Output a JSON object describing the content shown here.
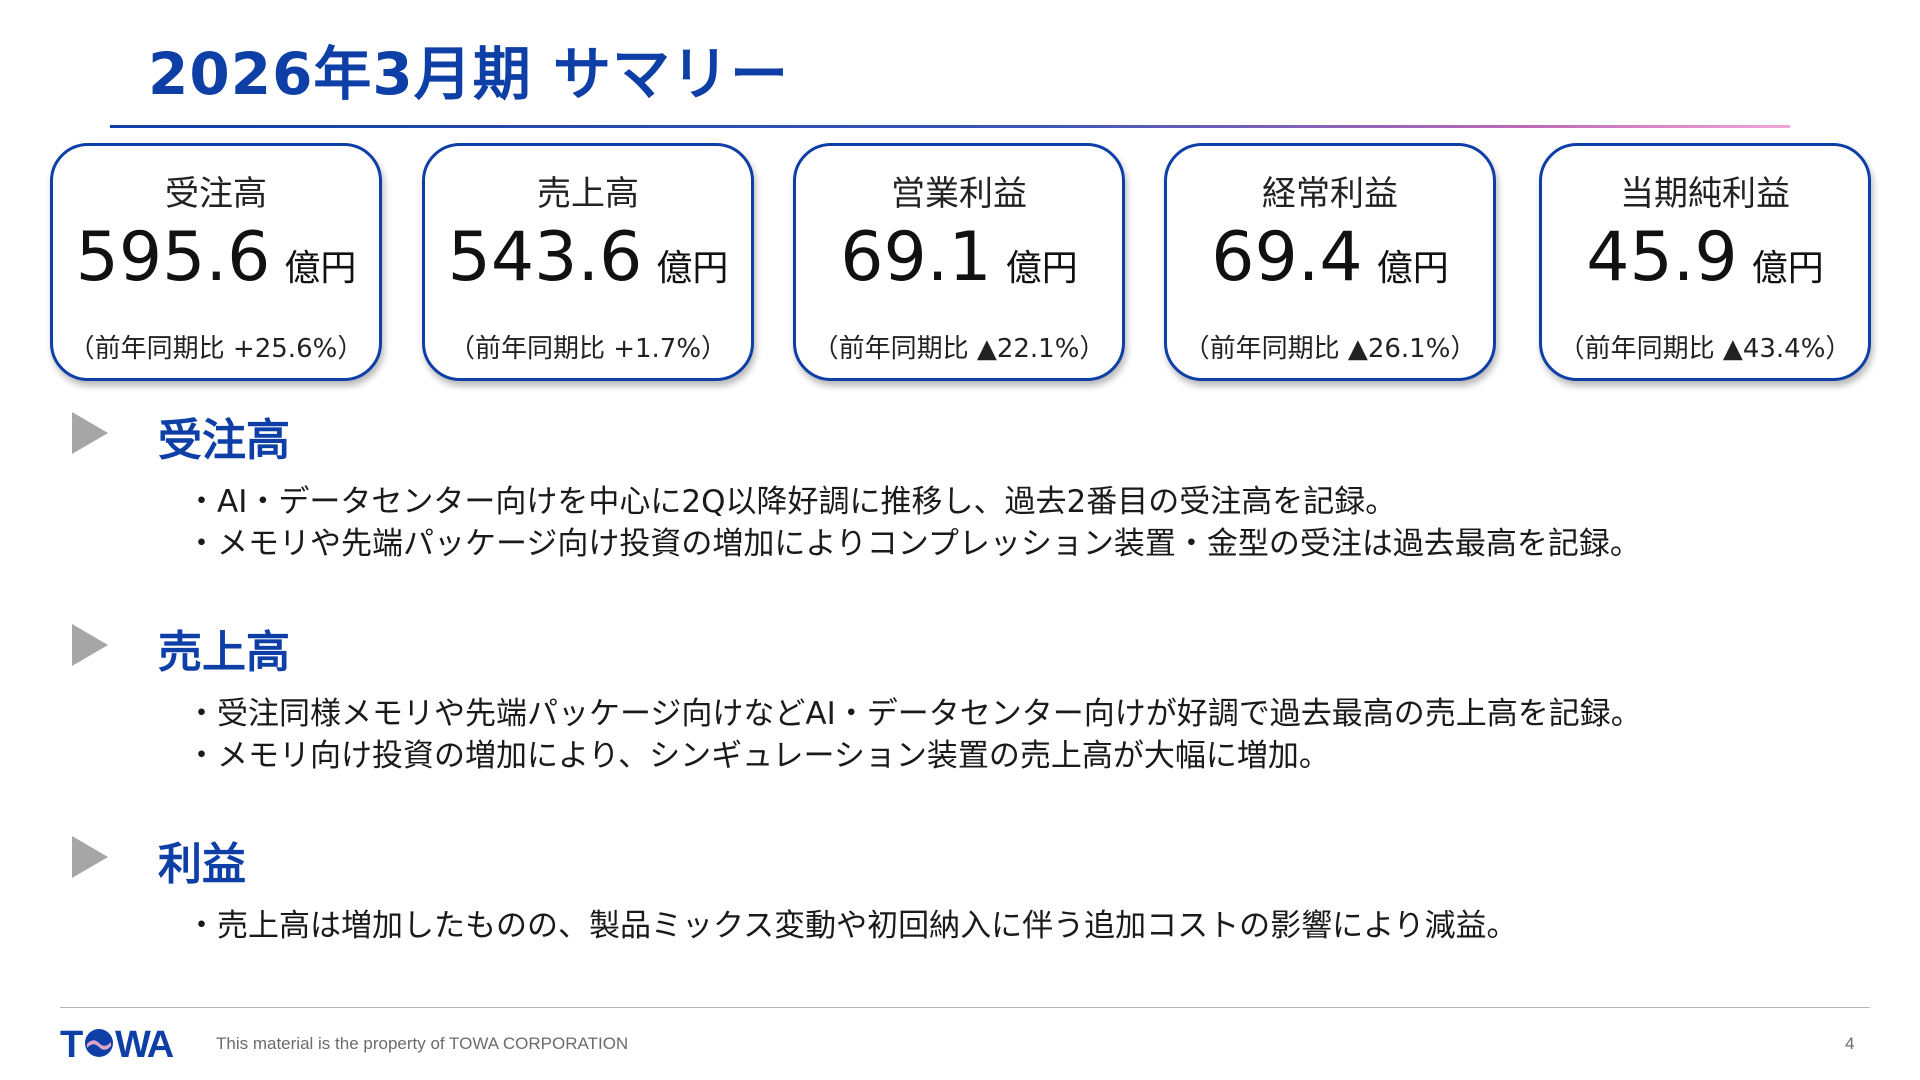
{
  "title": "2026年3月期 サマリー",
  "kpis": [
    {
      "label": "受注高",
      "value": "595.6",
      "unit": "億円",
      "yoy": "（前年同期比 +25.6%）"
    },
    {
      "label": "売上高",
      "value": "543.6",
      "unit": "億円",
      "yoy": "（前年同期比 +1.7%）"
    },
    {
      "label": "営業利益",
      "value": "69.1",
      "unit": "億円",
      "yoy": "（前年同期比 ▲22.1%）"
    },
    {
      "label": "経常利益",
      "value": "69.4",
      "unit": "億円",
      "yoy": "（前年同期比 ▲26.1%）"
    },
    {
      "label": "当期純利益",
      "value": "45.9",
      "unit": "億円",
      "yoy": "（前年同期比 ▲43.4%）"
    }
  ],
  "sections": [
    {
      "heading": "受注高",
      "bullets": [
        "・AI・データセンター向けを中心に2Q以降好調に推移し、過去2番目の受注高を記録。",
        "・メモリや先端パッケージ向け投資の増加によりコンプレッション装置・金型の受注は過去最高を記録。"
      ]
    },
    {
      "heading": "売上高",
      "bullets": [
        "・受注同様メモリや先端パッケージ向けなどAI・データセンター向けが好調で過去最高の売上高を記録。",
        "・メモリ向け投資の増加により、シンギュレーション装置の売上高が大幅に増加。"
      ]
    },
    {
      "heading": "利益",
      "bullets": [
        "・売上高は増加したものの、製品ミックス変動や初回納入に伴う追加コストの影響により減益。"
      ]
    }
  ],
  "footer": {
    "logo_text": "TOWA",
    "property_text": "This material is the property of TOWA CORPORATION",
    "page_number": "4"
  },
  "colors": {
    "brand_blue": "#0d3fa6",
    "marker_gray": "#a6a6a6",
    "logo_pink": "#e1a3c8"
  }
}
